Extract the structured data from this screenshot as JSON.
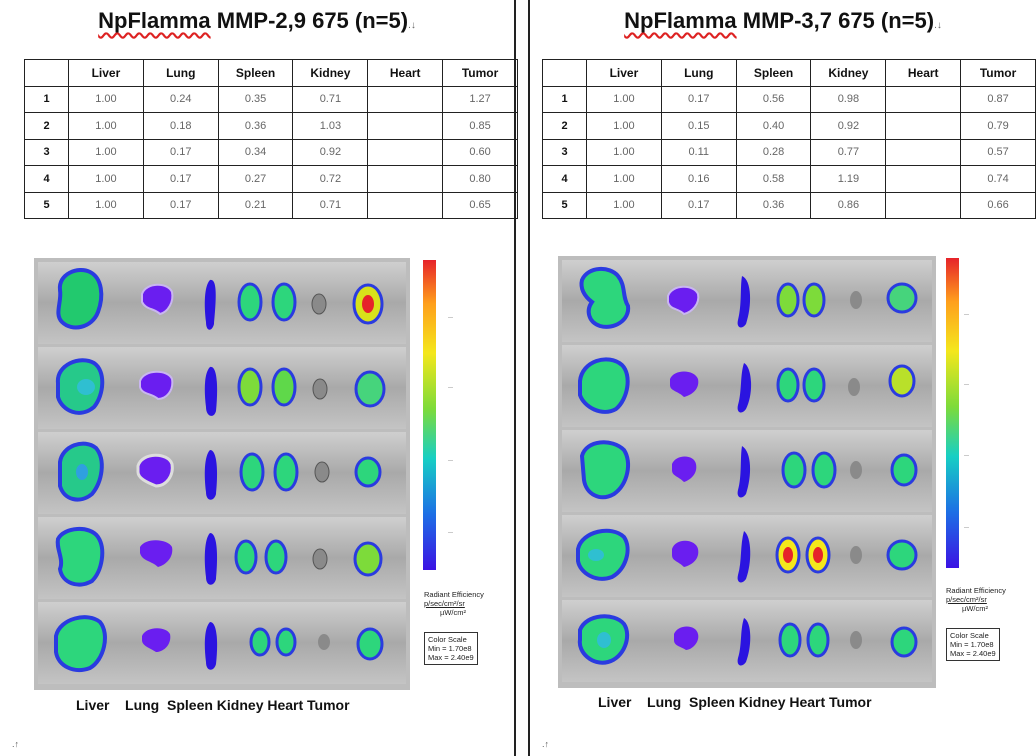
{
  "panels": [
    {
      "title_underlined": "NpFlamma",
      "title_rest": " MMP-2,9 675 (n=5)",
      "table": {
        "headers": [
          "",
          "Liver",
          "Lung",
          "Spleen",
          "Kidney",
          "Heart",
          "Tumor"
        ],
        "rows": [
          [
            "1",
            "1.00",
            "0.24",
            "0.35",
            "0.71",
            "",
            "1.27"
          ],
          [
            "2",
            "1.00",
            "0.18",
            "0.36",
            "1.03",
            "",
            "0.85"
          ],
          [
            "3",
            "1.00",
            "0.17",
            "0.34",
            "0.92",
            "",
            "0.60"
          ],
          [
            "4",
            "1.00",
            "0.17",
            "0.27",
            "0.72",
            "",
            "0.80"
          ],
          [
            "5",
            "1.00",
            "0.17",
            "0.21",
            "0.71",
            "",
            "0.65"
          ]
        ]
      },
      "organ_labels": "Liver    Lung  Spleen Kidney Heart Tumor",
      "scale": {
        "caption": [
          "Radiant Efficiency",
          "p/sec/cm²/sr",
          "µW/cm²"
        ],
        "box": [
          "Color Scale",
          "Min = 1.70e8",
          "Max = 2.40e9"
        ]
      }
    },
    {
      "title_underlined": "NpFlamma",
      "title_rest": " MMP-3,7 675 (n=5)",
      "table": {
        "headers": [
          "",
          "Liver",
          "Lung",
          "Spleen",
          "Kidney",
          "Heart",
          "Tumor"
        ],
        "rows": [
          [
            "1",
            "1.00",
            "0.17",
            "0.56",
            "0.98",
            "",
            "0.87"
          ],
          [
            "2",
            "1.00",
            "0.15",
            "0.40",
            "0.92",
            "",
            "0.79"
          ],
          [
            "3",
            "1.00",
            "0.11",
            "0.28",
            "0.77",
            "",
            "0.57"
          ],
          [
            "4",
            "1.00",
            "0.16",
            "0.58",
            "1.19",
            "",
            "0.74"
          ],
          [
            "5",
            "1.00",
            "0.17",
            "0.36",
            "0.86",
            "",
            "0.66"
          ]
        ]
      },
      "organ_labels": "Liver    Lung  Spleen Kidney Heart Tumor",
      "scale": {
        "caption": [
          "Radiant Efficiency",
          "p/sec/cm²/sr",
          "µW/cm²"
        ],
        "box": [
          "Color Scale",
          "Min = 1.70e8",
          "Max = 2.40e9"
        ]
      }
    }
  ],
  "colors": {
    "border": "#222222",
    "title_underline": "#dd2222",
    "cell_text": "#666666",
    "hot": "#e6232a",
    "warm": "#f4e71c",
    "mid": "#17cfc4",
    "cool": "#3b12e4"
  }
}
